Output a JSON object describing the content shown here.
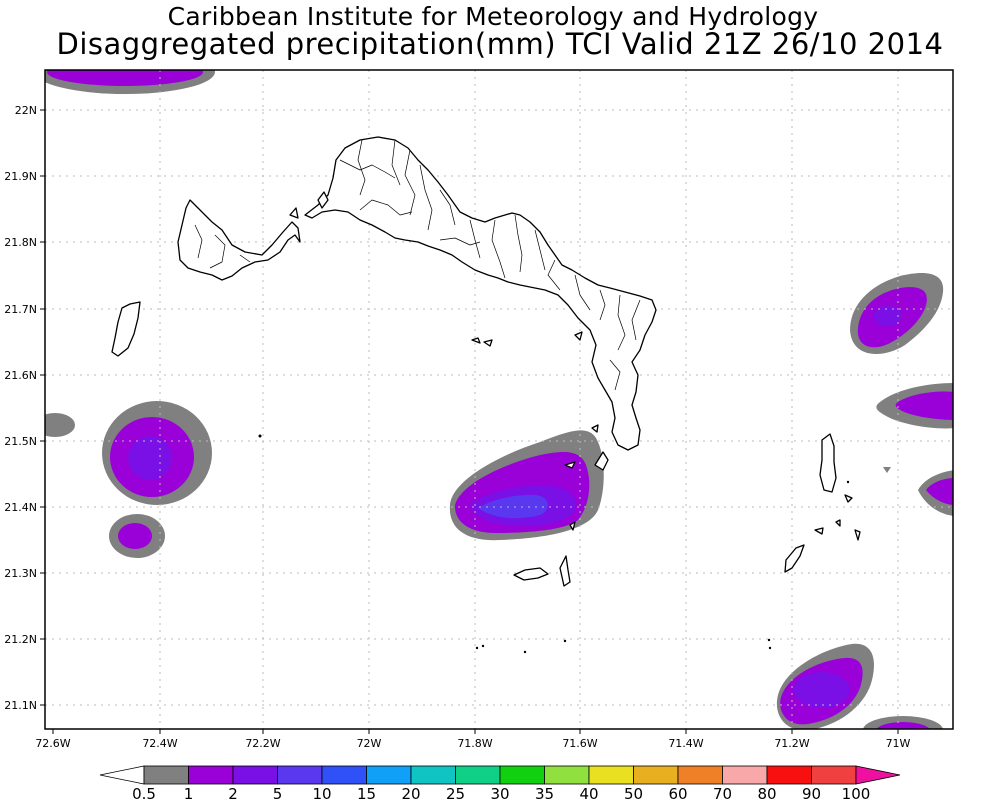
{
  "header": {
    "title": "Caribbean Institute for Meteorology and Hydrology",
    "subtitle": "Disaggregated precipitation(mm) TCI Valid 21Z 26/10 2014"
  },
  "axes": {
    "lat_labels": [
      "22N",
      "21.9N",
      "21.8N",
      "21.7N",
      "21.6N",
      "21.5N",
      "21.4N",
      "21.3N",
      "21.2N",
      "21.1N"
    ],
    "lon_labels": [
      "72.6W",
      "72.4W",
      "72.2W",
      "72W",
      "71.8W",
      "71.6W",
      "71.4W",
      "71.2W",
      "71W"
    ]
  },
  "legend": {
    "labels": [
      "0.5",
      "1",
      "2",
      "5",
      "10",
      "15",
      "20",
      "25",
      "30",
      "35",
      "40",
      "50",
      "60",
      "70",
      "80",
      "90",
      "100"
    ],
    "colors": [
      "#808080",
      "#9a00d8",
      "#7a10e6",
      "#5a38f0",
      "#3050f8",
      "#10a0f8",
      "#10c4c4",
      "#10d088",
      "#10d010",
      "#90e040",
      "#e8e020",
      "#e8b020",
      "#f08028",
      "#f8a8a8",
      "#f81010",
      "#f04040",
      "#f010a0"
    ]
  },
  "colors": {
    "land_outline": "#000000",
    "gridline": "#bbbbbb"
  }
}
